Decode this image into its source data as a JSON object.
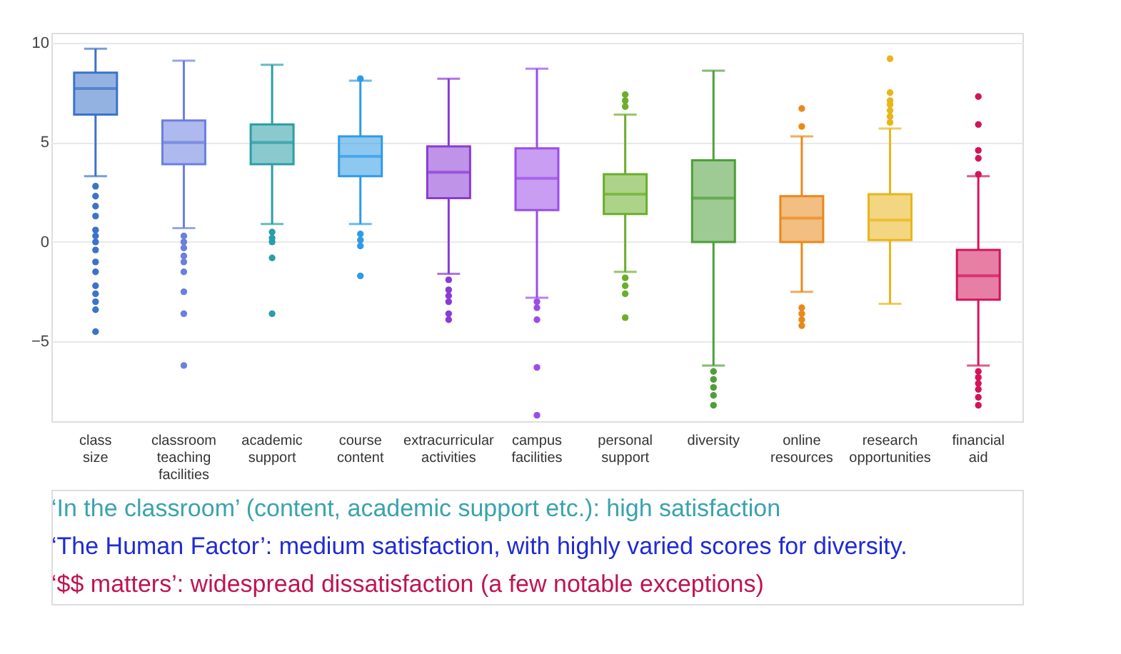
{
  "chart_data": {
    "type": "box",
    "categories": [
      "class size",
      "classroom teaching facilities",
      "academic support",
      "course content",
      "extracurricular activities",
      "campus facilities",
      "personal support",
      "diversity",
      "online resources",
      "research opportunities",
      "financial aid"
    ],
    "colors": [
      "#3d72c9",
      "#6b7fe0",
      "#2a9ea6",
      "#2f9be6",
      "#8a3ad6",
      "#9a4ce8",
      "#6aae2a",
      "#4f9e3a",
      "#e8891a",
      "#e8b51a",
      "#d4145a"
    ],
    "boxes": [
      {
        "low": 3.3,
        "q1": 6.4,
        "median": 7.7,
        "q3": 8.5,
        "high": 9.7,
        "outliers": [
          2.8,
          2.3,
          1.8,
          1.3,
          0.6,
          0.3,
          0,
          -0.4,
          -1.0,
          -1.5,
          -2.2,
          -2.6,
          -3.0,
          -3.4,
          -4.5
        ]
      },
      {
        "low": 0.7,
        "q1": 3.9,
        "median": 5.0,
        "q3": 6.1,
        "high": 9.1,
        "outliers": [
          0.3,
          0,
          -0.3,
          -0.7,
          -1.0,
          -1.5,
          -2.5,
          -3.6,
          -6.2
        ]
      },
      {
        "low": 0.9,
        "q1": 3.9,
        "median": 5.0,
        "q3": 5.9,
        "high": 8.9,
        "outliers": [
          0.5,
          0.2,
          0,
          -0.8,
          -3.6
        ]
      },
      {
        "low": 0.9,
        "q1": 3.3,
        "median": 4.3,
        "q3": 5.3,
        "high": 8.1,
        "outliers": [
          8.2,
          0.4,
          0.1,
          -0.2,
          -1.7
        ]
      },
      {
        "low": -1.6,
        "q1": 2.2,
        "median": 3.5,
        "q3": 4.8,
        "high": 8.2,
        "outliers": [
          -1.9,
          -2.4,
          -2.7,
          -3.0,
          -3.6,
          -3.9
        ]
      },
      {
        "low": -2.8,
        "q1": 1.6,
        "median": 3.2,
        "q3": 4.7,
        "high": 8.7,
        "outliers": [
          -3.0,
          -3.3,
          -3.9,
          -6.3,
          -8.7
        ]
      },
      {
        "low": -1.5,
        "q1": 1.4,
        "median": 2.4,
        "q3": 3.4,
        "high": 6.4,
        "outliers": [
          7.4,
          7.1,
          6.8,
          -1.8,
          -2.2,
          -2.6,
          -3.8
        ]
      },
      {
        "low": -6.2,
        "q1": 0,
        "median": 2.2,
        "q3": 4.1,
        "high": 8.6,
        "outliers": [
          -6.5,
          -6.9,
          -7.3,
          -7.7,
          -8.2
        ]
      },
      {
        "low": -2.5,
        "q1": 0,
        "median": 1.2,
        "q3": 2.3,
        "high": 5.3,
        "outliers": [
          6.7,
          5.8,
          -3.3,
          -3.6,
          -3.9,
          -4.2
        ]
      },
      {
        "low": -3.1,
        "q1": 0.1,
        "median": 1.1,
        "q3": 2.4,
        "high": 5.7,
        "outliers": [
          9.2,
          7.5,
          7.1,
          6.9,
          6.6,
          6.3,
          6.0
        ]
      },
      {
        "low": -6.2,
        "q1": -2.9,
        "median": -1.7,
        "q3": -0.4,
        "high": 3.3,
        "outliers": [
          7.3,
          5.9,
          4.6,
          4.2,
          3.4,
          -6.5,
          -6.8,
          -7.1,
          -7.4,
          -7.8,
          -8.2
        ]
      }
    ],
    "ylim": [
      -9,
      10.5
    ],
    "yticks": [
      -5,
      0,
      5,
      10
    ],
    "grid": "y",
    "annotations": [
      "‘In the classroom’ (content, academic support etc.): high satisfaction",
      "‘The Human Factor’: medium satisfaction, with highly varied scores for diversity.",
      "‘$$ matters’: widespread dissatisfaction (a few notable exceptions)"
    ]
  }
}
